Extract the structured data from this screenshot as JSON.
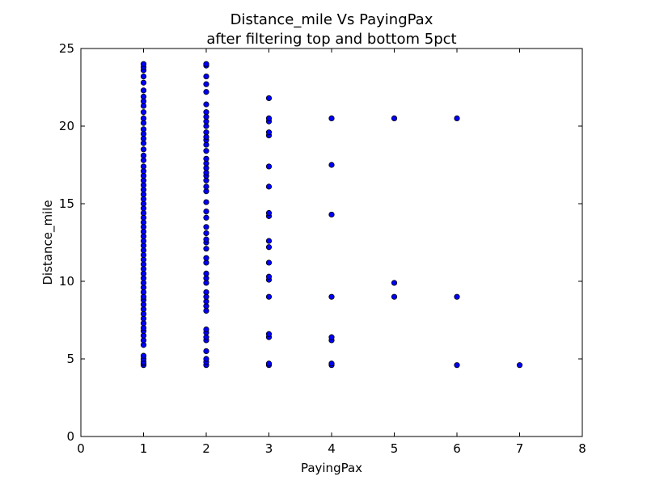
{
  "chart_data": {
    "type": "scatter",
    "title": "Distance_mile Vs PayingPax",
    "subtitle": "after filtering top and bottom 5pct",
    "xlabel": "PayingPax",
    "ylabel": "Distance_mile",
    "xlim": [
      0,
      8
    ],
    "ylim": [
      0,
      25
    ],
    "xticks": [
      "0",
      "1",
      "2",
      "3",
      "4",
      "5",
      "6",
      "7",
      "8"
    ],
    "yticks": [
      "0",
      "5",
      "10",
      "15",
      "20",
      "25"
    ],
    "grid": false,
    "legend": "none",
    "marker_color": "#0000ff",
    "marker_edge_color": "#000000",
    "points": [
      {
        "x": 1,
        "y": 4.6
      },
      {
        "x": 1,
        "y": 4.7
      },
      {
        "x": 1,
        "y": 4.8
      },
      {
        "x": 1,
        "y": 5.0
      },
      {
        "x": 1,
        "y": 5.2
      },
      {
        "x": 1,
        "y": 5.9
      },
      {
        "x": 1,
        "y": 6.2
      },
      {
        "x": 1,
        "y": 6.5
      },
      {
        "x": 1,
        "y": 6.8
      },
      {
        "x": 1,
        "y": 7.0
      },
      {
        "x": 1,
        "y": 7.3
      },
      {
        "x": 1,
        "y": 7.6
      },
      {
        "x": 1,
        "y": 7.9
      },
      {
        "x": 1,
        "y": 8.2
      },
      {
        "x": 1,
        "y": 8.5
      },
      {
        "x": 1,
        "y": 8.8
      },
      {
        "x": 1,
        "y": 9.0
      },
      {
        "x": 1,
        "y": 9.3
      },
      {
        "x": 1,
        "y": 9.6
      },
      {
        "x": 1,
        "y": 9.9
      },
      {
        "x": 1,
        "y": 10.2
      },
      {
        "x": 1,
        "y": 10.5
      },
      {
        "x": 1,
        "y": 10.8
      },
      {
        "x": 1,
        "y": 11.1
      },
      {
        "x": 1,
        "y": 11.4
      },
      {
        "x": 1,
        "y": 11.7
      },
      {
        "x": 1,
        "y": 12.0
      },
      {
        "x": 1,
        "y": 12.3
      },
      {
        "x": 1,
        "y": 12.6
      },
      {
        "x": 1,
        "y": 12.9
      },
      {
        "x": 1,
        "y": 13.2
      },
      {
        "x": 1,
        "y": 13.5
      },
      {
        "x": 1,
        "y": 13.8
      },
      {
        "x": 1,
        "y": 14.1
      },
      {
        "x": 1,
        "y": 14.4
      },
      {
        "x": 1,
        "y": 14.7
      },
      {
        "x": 1,
        "y": 15.0
      },
      {
        "x": 1,
        "y": 15.3
      },
      {
        "x": 1,
        "y": 15.6
      },
      {
        "x": 1,
        "y": 15.9
      },
      {
        "x": 1,
        "y": 16.2
      },
      {
        "x": 1,
        "y": 16.5
      },
      {
        "x": 1,
        "y": 16.8
      },
      {
        "x": 1,
        "y": 17.1
      },
      {
        "x": 1,
        "y": 17.4
      },
      {
        "x": 1,
        "y": 17.8
      },
      {
        "x": 1,
        "y": 18.1
      },
      {
        "x": 1,
        "y": 18.5
      },
      {
        "x": 1,
        "y": 18.9
      },
      {
        "x": 1,
        "y": 19.2
      },
      {
        "x": 1,
        "y": 19.5
      },
      {
        "x": 1,
        "y": 19.8
      },
      {
        "x": 1,
        "y": 20.2
      },
      {
        "x": 1,
        "y": 20.5
      },
      {
        "x": 1,
        "y": 20.9
      },
      {
        "x": 1,
        "y": 21.3
      },
      {
        "x": 1,
        "y": 21.6
      },
      {
        "x": 1,
        "y": 21.9
      },
      {
        "x": 1,
        "y": 22.3
      },
      {
        "x": 1,
        "y": 22.8
      },
      {
        "x": 1,
        "y": 23.2
      },
      {
        "x": 1,
        "y": 23.6
      },
      {
        "x": 1,
        "y": 23.8
      },
      {
        "x": 1,
        "y": 24.0
      },
      {
        "x": 2,
        "y": 4.6
      },
      {
        "x": 2,
        "y": 4.8
      },
      {
        "x": 2,
        "y": 5.0
      },
      {
        "x": 2,
        "y": 5.5
      },
      {
        "x": 2,
        "y": 6.2
      },
      {
        "x": 2,
        "y": 6.4
      },
      {
        "x": 2,
        "y": 6.7
      },
      {
        "x": 2,
        "y": 6.9
      },
      {
        "x": 2,
        "y": 8.1
      },
      {
        "x": 2,
        "y": 8.4
      },
      {
        "x": 2,
        "y": 8.7
      },
      {
        "x": 2,
        "y": 9.0
      },
      {
        "x": 2,
        "y": 9.3
      },
      {
        "x": 2,
        "y": 9.9
      },
      {
        "x": 2,
        "y": 10.2
      },
      {
        "x": 2,
        "y": 10.5
      },
      {
        "x": 2,
        "y": 11.2
      },
      {
        "x": 2,
        "y": 11.5
      },
      {
        "x": 2,
        "y": 12.1
      },
      {
        "x": 2,
        "y": 12.5
      },
      {
        "x": 2,
        "y": 12.7
      },
      {
        "x": 2,
        "y": 13.1
      },
      {
        "x": 2,
        "y": 13.5
      },
      {
        "x": 2,
        "y": 14.1
      },
      {
        "x": 2,
        "y": 14.5
      },
      {
        "x": 2,
        "y": 15.1
      },
      {
        "x": 2,
        "y": 15.8
      },
      {
        "x": 2,
        "y": 16.1
      },
      {
        "x": 2,
        "y": 16.5
      },
      {
        "x": 2,
        "y": 16.8
      },
      {
        "x": 2,
        "y": 17.0
      },
      {
        "x": 2,
        "y": 17.3
      },
      {
        "x": 2,
        "y": 17.6
      },
      {
        "x": 2,
        "y": 17.9
      },
      {
        "x": 2,
        "y": 18.4
      },
      {
        "x": 2,
        "y": 18.8
      },
      {
        "x": 2,
        "y": 19.1
      },
      {
        "x": 2,
        "y": 19.3
      },
      {
        "x": 2,
        "y": 19.6
      },
      {
        "x": 2,
        "y": 20.0
      },
      {
        "x": 2,
        "y": 20.3
      },
      {
        "x": 2,
        "y": 20.6
      },
      {
        "x": 2,
        "y": 20.9
      },
      {
        "x": 2,
        "y": 21.4
      },
      {
        "x": 2,
        "y": 22.2
      },
      {
        "x": 2,
        "y": 22.7
      },
      {
        "x": 2,
        "y": 23.2
      },
      {
        "x": 2,
        "y": 23.9
      },
      {
        "x": 2,
        "y": 24.0
      },
      {
        "x": 3,
        "y": 4.6
      },
      {
        "x": 3,
        "y": 4.7
      },
      {
        "x": 3,
        "y": 6.4
      },
      {
        "x": 3,
        "y": 6.6
      },
      {
        "x": 3,
        "y": 9.0
      },
      {
        "x": 3,
        "y": 10.1
      },
      {
        "x": 3,
        "y": 10.3
      },
      {
        "x": 3,
        "y": 11.2
      },
      {
        "x": 3,
        "y": 12.2
      },
      {
        "x": 3,
        "y": 12.6
      },
      {
        "x": 3,
        "y": 14.2
      },
      {
        "x": 3,
        "y": 14.4
      },
      {
        "x": 3,
        "y": 16.1
      },
      {
        "x": 3,
        "y": 17.4
      },
      {
        "x": 3,
        "y": 19.4
      },
      {
        "x": 3,
        "y": 19.6
      },
      {
        "x": 3,
        "y": 20.3
      },
      {
        "x": 3,
        "y": 20.5
      },
      {
        "x": 3,
        "y": 21.8
      },
      {
        "x": 4,
        "y": 4.6
      },
      {
        "x": 4,
        "y": 4.7
      },
      {
        "x": 4,
        "y": 6.2
      },
      {
        "x": 4,
        "y": 6.4
      },
      {
        "x": 4,
        "y": 9.0
      },
      {
        "x": 4,
        "y": 14.3
      },
      {
        "x": 4,
        "y": 17.5
      },
      {
        "x": 4,
        "y": 20.5
      },
      {
        "x": 5,
        "y": 9.0
      },
      {
        "x": 5,
        "y": 9.9
      },
      {
        "x": 5,
        "y": 20.5
      },
      {
        "x": 6,
        "y": 4.6
      },
      {
        "x": 6,
        "y": 9.0
      },
      {
        "x": 6,
        "y": 20.5
      },
      {
        "x": 7,
        "y": 4.6
      }
    ]
  }
}
